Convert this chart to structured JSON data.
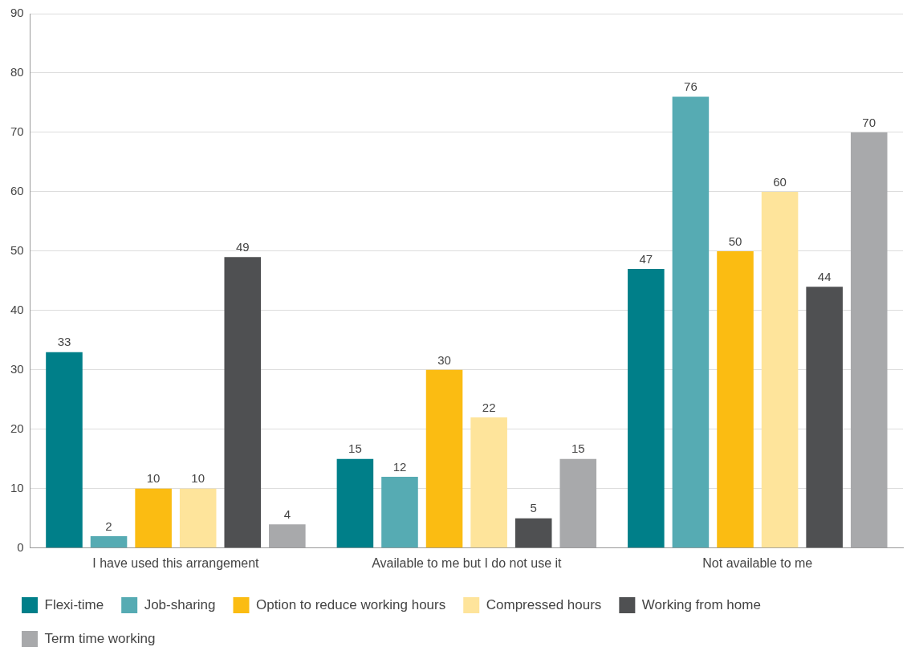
{
  "chart_data": {
    "type": "bar",
    "categories": [
      "I have used this arrangement",
      "Available to me but I do not use it",
      "Not available to me"
    ],
    "series": [
      {
        "name": "Flexi-time",
        "color": "#007f89",
        "values": [
          33,
          15,
          47
        ]
      },
      {
        "name": "Job-sharing",
        "color": "#56abb3",
        "values": [
          2,
          12,
          76
        ]
      },
      {
        "name": "Option to reduce working hours",
        "color": "#fbbc12",
        "values": [
          10,
          30,
          50
        ]
      },
      {
        "name": "Compressed hours",
        "color": "#fee49b",
        "values": [
          10,
          22,
          60
        ]
      },
      {
        "name": "Working from home",
        "color": "#4f5052",
        "values": [
          49,
          5,
          44
        ]
      },
      {
        "name": "Term time working",
        "color": "#a8a9ab",
        "values": [
          4,
          15,
          70
        ]
      }
    ],
    "ylim": [
      0,
      90
    ],
    "yticks": [
      0,
      10,
      20,
      30,
      40,
      50,
      60,
      70,
      80,
      90
    ],
    "grid": "y",
    "legend": "bottom",
    "data_labels": true
  }
}
